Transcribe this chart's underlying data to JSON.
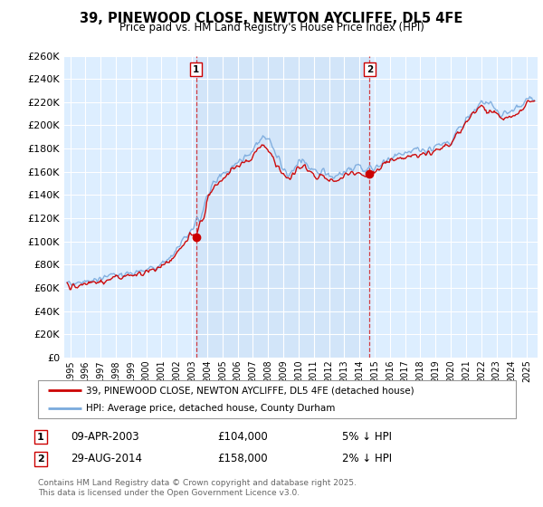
{
  "title": "39, PINEWOOD CLOSE, NEWTON AYCLIFFE, DL5 4FE",
  "subtitle": "Price paid vs. HM Land Registry's House Price Index (HPI)",
  "legend_line1": "39, PINEWOOD CLOSE, NEWTON AYCLIFFE, DL5 4FE (detached house)",
  "legend_line2": "HPI: Average price, detached house, County Durham",
  "annotation1_date": "09-APR-2003",
  "annotation1_price": "£104,000",
  "annotation1_hpi": "5% ↓ HPI",
  "annotation2_date": "29-AUG-2014",
  "annotation2_price": "£158,000",
  "annotation2_hpi": "2% ↓ HPI",
  "footnote": "Contains HM Land Registry data © Crown copyright and database right 2025.\nThis data is licensed under the Open Government Licence v3.0.",
  "red_color": "#cc0000",
  "blue_color": "#7aaadd",
  "dashed_color": "#cc0000",
  "bg_plot": "#ddeeff",
  "shade_color": "#cce0f5",
  "ylim": [
    0,
    260000
  ],
  "ytick_step": 20000,
  "sale1_x": 2003.27,
  "sale1_y": 104000,
  "sale2_x": 2014.66,
  "sale2_y": 158000,
  "xmin": 1994.6,
  "xmax": 2025.7
}
